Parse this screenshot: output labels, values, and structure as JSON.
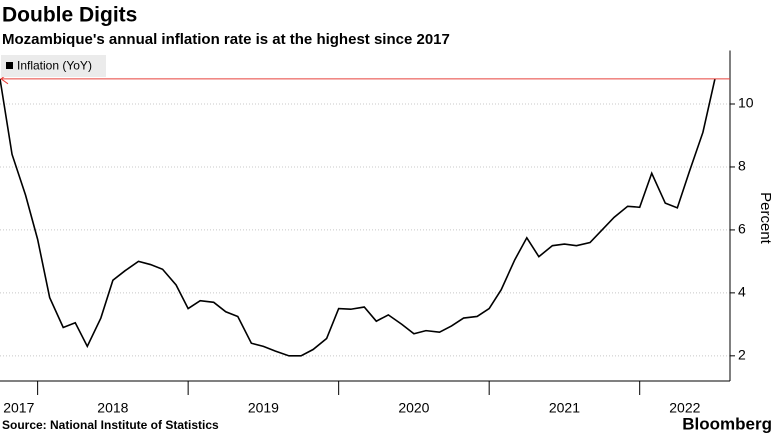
{
  "chart_data": {
    "type": "line",
    "title": "Double Digits",
    "subtitle": "Mozambique's annual inflation rate is at the highest since 2017",
    "y_label": "Percent",
    "source": "Source: National Institute of Statistics",
    "brand": "Bloomberg",
    "series": [
      {
        "name": "Inflation (YoY)",
        "color": "#000000",
        "x": [
          2017.75,
          2017.83,
          2017.92,
          2018.0,
          2018.08,
          2018.17,
          2018.25,
          2018.33,
          2018.42,
          2018.5,
          2018.58,
          2018.67,
          2018.75,
          2018.83,
          2018.92,
          2019.0,
          2019.08,
          2019.17,
          2019.25,
          2019.33,
          2019.42,
          2019.5,
          2019.58,
          2019.67,
          2019.75,
          2019.83,
          2019.92,
          2020.0,
          2020.08,
          2020.17,
          2020.25,
          2020.33,
          2020.42,
          2020.5,
          2020.58,
          2020.67,
          2020.75,
          2020.83,
          2020.92,
          2021.0,
          2021.08,
          2021.17,
          2021.25,
          2021.33,
          2021.42,
          2021.5,
          2021.58,
          2021.67,
          2021.75,
          2021.83,
          2021.92,
          2022.0,
          2022.08,
          2022.17,
          2022.25,
          2022.33,
          2022.42,
          2022.5
        ],
        "values": [
          10.8,
          8.4,
          7.1,
          5.7,
          3.85,
          2.9,
          3.05,
          2.3,
          3.2,
          4.4,
          4.7,
          5.0,
          4.9,
          4.75,
          4.25,
          3.5,
          3.75,
          3.7,
          3.4,
          3.25,
          2.4,
          2.3,
          2.15,
          2.0,
          2.0,
          2.2,
          2.55,
          3.5,
          3.48,
          3.55,
          3.1,
          3.3,
          3.0,
          2.7,
          2.8,
          2.75,
          2.95,
          3.2,
          3.25,
          3.5,
          4.1,
          5.05,
          5.75,
          5.15,
          5.5,
          5.55,
          5.5,
          5.6,
          6.0,
          6.4,
          6.75,
          6.72,
          7.8,
          6.85,
          6.7,
          7.85,
          9.1,
          10.8
        ]
      }
    ],
    "reference_color": "#e8413b",
    "xlim": [
      2017.75,
      2022.6
    ],
    "xticks": [
      2017,
      2018,
      2019,
      2020,
      2021,
      2022
    ],
    "ylim": [
      1.2,
      11.7
    ],
    "yticks": [
      2,
      4,
      6,
      8,
      10
    ],
    "grid": true,
    "legend": "top-left"
  }
}
